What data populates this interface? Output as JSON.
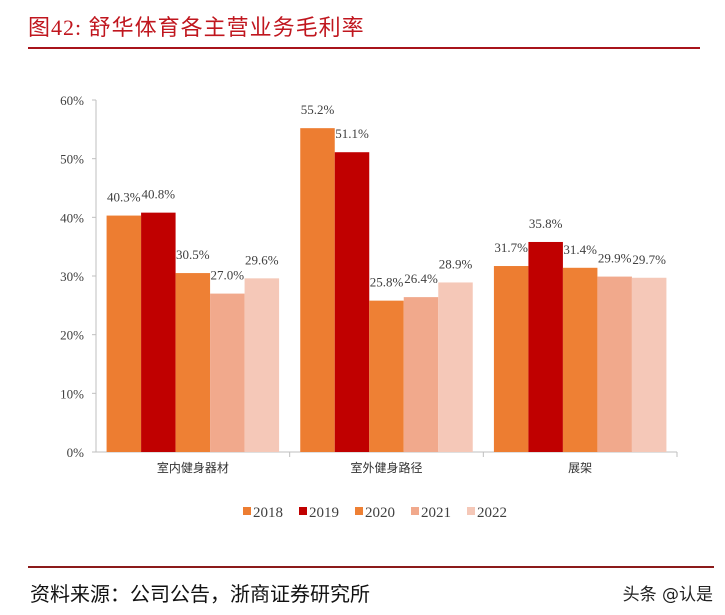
{
  "title": "图42:   舒华体育各主营业务毛利率",
  "source": "资料来源：公司公告，浙商证券研究所",
  "watermark": "头条 @认是",
  "chart_data": {
    "type": "bar",
    "categories": [
      "室内健身器材",
      "室外健身路径",
      "展架"
    ],
    "series": [
      {
        "name": "2018",
        "color": "#ED7D31",
        "values": [
          40.3,
          55.2,
          31.7
        ],
        "labels": [
          "40.3%",
          "55.2%",
          "31.7%"
        ]
      },
      {
        "name": "2019",
        "color": "#C00000",
        "values": [
          40.8,
          51.1,
          35.8
        ],
        "labels": [
          "40.8%",
          "51.1%",
          "35.8%"
        ]
      },
      {
        "name": "2020",
        "color": "#EE8034",
        "values": [
          30.5,
          25.8,
          31.4
        ],
        "labels": [
          "30.5%",
          "25.8%",
          "31.4%"
        ]
      },
      {
        "name": "2021",
        "color": "#F1A98C",
        "values": [
          27.0,
          26.4,
          29.9
        ],
        "labels": [
          "27.0%",
          "26.4%",
          "29.9%"
        ]
      },
      {
        "name": "2022",
        "color": "#F5C8B8",
        "values": [
          29.6,
          28.9,
          29.7
        ],
        "labels": [
          "29.6%",
          "28.9%",
          "29.7%"
        ]
      }
    ],
    "ylim": [
      0,
      60
    ],
    "yticks": [
      "0%",
      "10%",
      "20%",
      "30%",
      "40%",
      "50%",
      "60%"
    ],
    "grid": false,
    "legend": "bottom"
  }
}
